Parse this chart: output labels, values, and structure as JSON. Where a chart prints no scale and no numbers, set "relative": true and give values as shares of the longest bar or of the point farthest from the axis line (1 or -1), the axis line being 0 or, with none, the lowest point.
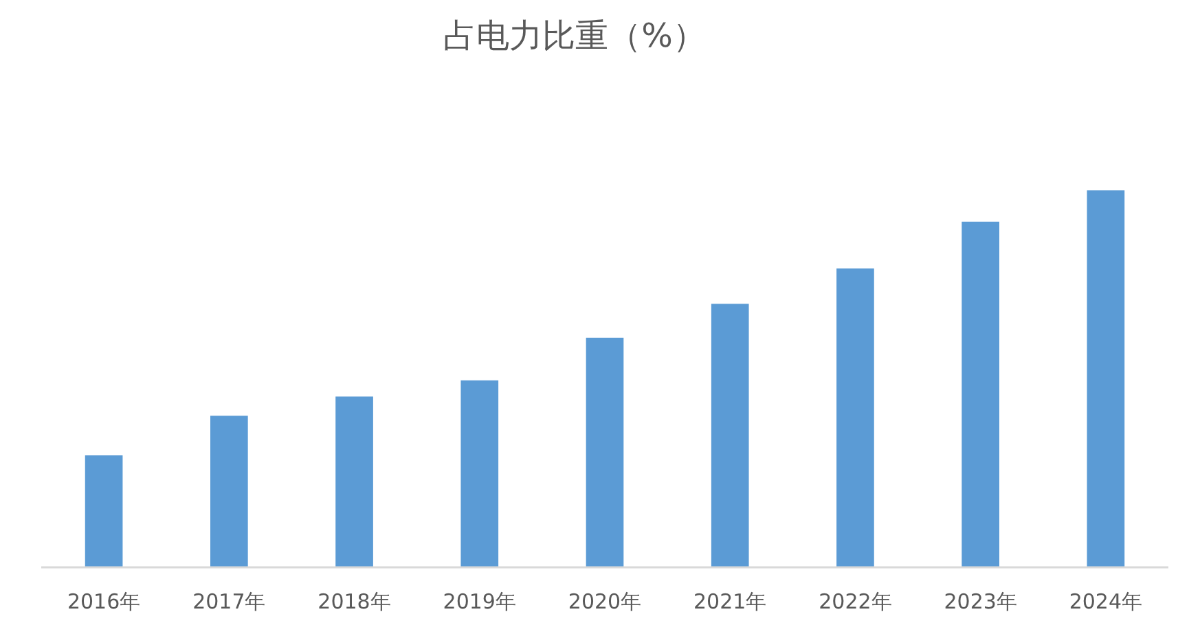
{
  "chart_data": {
    "type": "bar",
    "title": "占电力比重（%）",
    "relative": true,
    "categories": [
      "2016年",
      "2017年",
      "2018年",
      "2019年",
      "2020年",
      "2021年",
      "2022年",
      "2023年",
      "2024年"
    ],
    "values": [
      0.297,
      0.402,
      0.453,
      0.496,
      0.609,
      0.699,
      0.793,
      0.917,
      1
    ],
    "color": "#5b9bd5"
  }
}
